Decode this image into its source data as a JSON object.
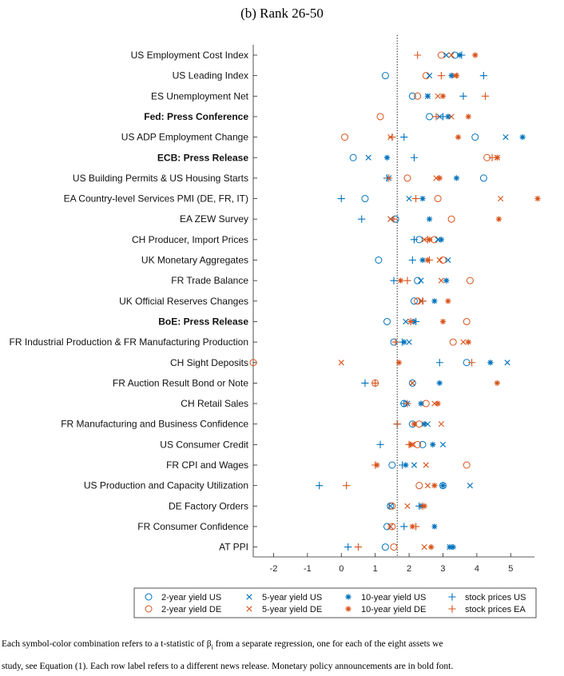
{
  "chart_data": {
    "type": "scatter",
    "title": "(b) Rank 26-50",
    "xlim": [
      -2.6,
      5.7
    ],
    "xticks": [
      -2,
      -1,
      0,
      1,
      2,
      3,
      4,
      5
    ],
    "reference_line_x": 1.65,
    "grid": false,
    "legend_position": "bottom",
    "categories": [
      {
        "label": "US Employment Cost Index",
        "bold": false
      },
      {
        "label": "US Leading Index",
        "bold": false
      },
      {
        "label": "ES Unemployment Net",
        "bold": false
      },
      {
        "label": "Fed: Press Conference",
        "bold": true
      },
      {
        "label": "US ADP Employment Change",
        "bold": false
      },
      {
        "label": "ECB: Press Release",
        "bold": true
      },
      {
        "label": "US Building Permits & US Housing Starts",
        "bold": false
      },
      {
        "label": "EA Country-level Services PMI (DE, FR, IT)",
        "bold": false
      },
      {
        "label": "EA ZEW Survey",
        "bold": false
      },
      {
        "label": "CH Producer, Import Prices",
        "bold": false
      },
      {
        "label": "UK Monetary Aggregates",
        "bold": false
      },
      {
        "label": "FR Trade Balance",
        "bold": false
      },
      {
        "label": "UK Official Reserves Changes",
        "bold": false
      },
      {
        "label": "BoE: Press Release",
        "bold": true
      },
      {
        "label": "FR Industrial Production & FR Manufacturing Production",
        "bold": false
      },
      {
        "label": "CH Sight Deposits",
        "bold": false
      },
      {
        "label": "FR Auction Result Bond or Note",
        "bold": false
      },
      {
        "label": "CH Retail Sales",
        "bold": false
      },
      {
        "label": "FR Manufacturing and Business Confidence",
        "bold": false
      },
      {
        "label": "US Consumer Credit",
        "bold": false
      },
      {
        "label": "FR CPI and Wages",
        "bold": false
      },
      {
        "label": "US Production and Capacity Utilization",
        "bold": false
      },
      {
        "label": "DE Factory Orders",
        "bold": false
      },
      {
        "label": "FR Consumer Confidence",
        "bold": false
      },
      {
        "label": "AT PPI",
        "bold": false
      }
    ],
    "series": [
      {
        "name": "2-year yield US",
        "marker": "circle",
        "color": "#0072bd",
        "values": [
          3.35,
          1.3,
          2.1,
          2.6,
          3.95,
          0.35,
          4.2,
          0.7,
          1.6,
          2.3,
          1.1,
          2.25,
          2.15,
          1.35,
          1.55,
          3.7,
          2.1,
          1.85,
          2.1,
          2.4,
          1.5,
          3.0,
          1.45,
          1.35,
          1.3
        ]
      },
      {
        "name": "2-year yield DE",
        "marker": "circle",
        "color": "#d95319",
        "values": [
          2.95,
          2.5,
          2.25,
          1.15,
          0.1,
          4.3,
          1.95,
          2.85,
          3.25,
          2.75,
          3.0,
          3.8,
          2.25,
          3.7,
          3.3,
          -2.6,
          1.0,
          2.5,
          2.3,
          2.25,
          3.7,
          2.3,
          1.5,
          1.5,
          1.55
        ]
      },
      {
        "name": "5-year yield US",
        "marker": "x",
        "color": "#0072bd",
        "values": [
          3.1,
          2.6,
          2.55,
          2.9,
          4.85,
          0.8,
          1.4,
          2.0,
          1.45,
          2.85,
          3.15,
          2.35,
          2.35,
          1.9,
          2.0,
          4.9,
          2.1,
          1.95,
          2.55,
          3.0,
          2.15,
          3.8,
          1.45,
          1.45,
          3.2
        ]
      },
      {
        "name": "5-year yield DE",
        "marker": "x",
        "color": "#d95319",
        "values": [
          3.25,
          3.35,
          2.85,
          3.25,
          1.45,
          4.6,
          2.8,
          4.7,
          1.45,
          2.45,
          2.9,
          2.95,
          2.35,
          2.05,
          3.6,
          0.0,
          2.1,
          2.75,
          2.95,
          2.1,
          2.5,
          2.55,
          1.95,
          1.45,
          2.45
        ]
      },
      {
        "name": "10-year yield US",
        "marker": "asterisk",
        "color": "#0072bd",
        "values": [
          3.5,
          3.25,
          2.55,
          3.15,
          5.35,
          1.35,
          3.4,
          2.4,
          2.6,
          2.95,
          2.4,
          3.1,
          2.75,
          2.15,
          1.85,
          4.4,
          2.9,
          2.35,
          2.45,
          2.7,
          1.9,
          3.0,
          2.35,
          2.75,
          3.2
        ]
      },
      {
        "name": "10-year yield DE",
        "marker": "asterisk",
        "color": "#d95319",
        "values": [
          3.95,
          3.4,
          3.0,
          3.75,
          3.45,
          4.6,
          2.9,
          5.95,
          4.65,
          2.6,
          2.55,
          1.75,
          3.15,
          3.0,
          3.75,
          1.7,
          4.6,
          2.85,
          2.15,
          2.05,
          1.05,
          2.75,
          2.45,
          2.1,
          2.65
        ]
      },
      {
        "name": "10-year yield US",
        "marker": "asterisk",
        "color": "#0072bd",
        "values": [
          null,
          null,
          null,
          null,
          null,
          null,
          null,
          null,
          null,
          null,
          null,
          null,
          null,
          null,
          null,
          null,
          null,
          null,
          null,
          null,
          null,
          null,
          null,
          null,
          3.3
        ]
      },
      {
        "name": "stock prices US",
        "marker": "plus",
        "color": "#0072bd",
        "values": [
          3.55,
          4.2,
          3.6,
          3.0,
          1.85,
          2.15,
          1.35,
          0.0,
          0.6,
          2.15,
          2.1,
          1.55,
          2.4,
          2.2,
          1.8,
          2.9,
          0.7,
          1.85,
          1.65,
          1.15,
          1.8,
          -0.65,
          2.3,
          1.85,
          0.2
        ]
      },
      {
        "name": "stock prices EA",
        "marker": "plus",
        "color": "#d95319",
        "values": [
          2.25,
          2.95,
          4.25,
          2.8,
          1.5,
          4.45,
          1.4,
          2.2,
          1.55,
          2.55,
          2.6,
          1.95,
          2.4,
          2.05,
          1.6,
          3.85,
          1.0,
          1.95,
          1.65,
          2.0,
          1.0,
          0.15,
          2.4,
          2.2,
          0.5
        ]
      }
    ],
    "legend": [
      {
        "name": "2-year yield US",
        "marker": "circle",
        "color": "#0072bd"
      },
      {
        "name": "5-year yield US",
        "marker": "x",
        "color": "#0072bd"
      },
      {
        "name": "10-year yield US",
        "marker": "asterisk",
        "color": "#0072bd"
      },
      {
        "name": "stock prices US",
        "marker": "plus",
        "color": "#0072bd"
      },
      {
        "name": "2-year yield DE",
        "marker": "circle",
        "color": "#d95319"
      },
      {
        "name": "5-year yield DE",
        "marker": "x",
        "color": "#d95319"
      },
      {
        "name": "10-year yield DE",
        "marker": "asterisk",
        "color": "#d95319"
      },
      {
        "name": "stock prices EA",
        "marker": "plus",
        "color": "#d95319"
      }
    ]
  },
  "caption": {
    "line1": "Each symbol-color combination refers to a t-statistic of β",
    "line1_sub": "i",
    "line1_end": " from a separate regression, one for each of the eight assets we",
    "line2": "study, see Equation (1). Each row label refers to a different news release. Monetary policy announcements are in bold font."
  }
}
